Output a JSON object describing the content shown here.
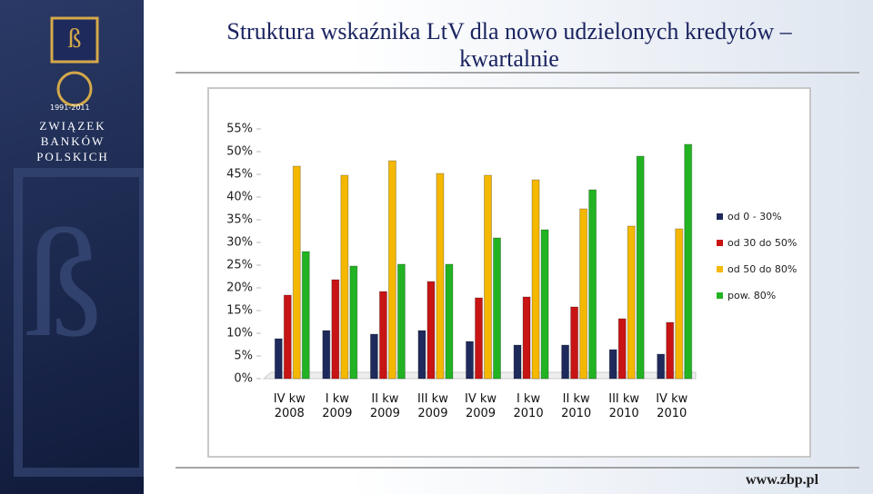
{
  "slide": {
    "logo_text": "ZWIĄZEK BANKÓW POLSKICH",
    "anniversary": "1991-2011",
    "footer_url": "www.zbp.pl"
  },
  "chart_data": {
    "type": "bar",
    "title": "Struktura wskaźnika LtV dla nowo udzielonych kredytów – kwartalnie",
    "categories": [
      "IV kw 2008",
      "I kw 2009",
      "II kw 2009",
      "III kw 2009",
      "IV kw 2009",
      "I kw 2010",
      "II kw 2010",
      "III kw 2010",
      "IV kw 2010"
    ],
    "series": [
      {
        "name": "od 0 - 30%",
        "color": "#1f2a5c",
        "values": [
          8.8,
          10.6,
          9.8,
          10.6,
          8.2,
          7.4,
          7.4,
          6.4,
          5.4
        ]
      },
      {
        "name": "od 30 do 50%",
        "color": "#c81414",
        "values": [
          18.4,
          21.8,
          19.2,
          21.4,
          17.8,
          18,
          15.8,
          13.2,
          12.4
        ]
      },
      {
        "name": "od 50 do 80%",
        "color": "#f5b800",
        "values": [
          46.8,
          44.8,
          48,
          45.2,
          44.8,
          43.8,
          37.4,
          33.6,
          33
        ]
      },
      {
        "name": "pow. 80%",
        "color": "#22b322",
        "values": [
          28,
          24.8,
          25.2,
          25.2,
          31,
          32.8,
          41.6,
          49,
          51.6
        ]
      }
    ],
    "ylim": [
      0,
      55
    ],
    "yticks": [
      {
        "value": 0,
        "label": "0%"
      },
      {
        "value": 5,
        "label": "5%"
      },
      {
        "value": 10,
        "label": "10%"
      },
      {
        "value": 15,
        "label": "15%"
      },
      {
        "value": 20,
        "label": "20%"
      },
      {
        "value": 25,
        "label": "25%"
      },
      {
        "value": 30,
        "label": "30%"
      },
      {
        "value": 35,
        "label": "35%"
      },
      {
        "value": 40,
        "label": "40%"
      },
      {
        "value": 45,
        "label": "45%"
      },
      {
        "value": 50,
        "label": "50%"
      },
      {
        "value": 55,
        "label": "55%"
      }
    ],
    "grid": false,
    "legend": "right"
  }
}
